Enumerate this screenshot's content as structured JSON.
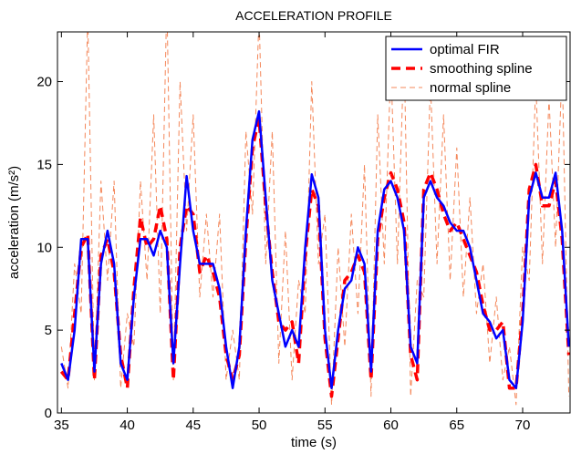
{
  "chart_data": {
    "type": "line",
    "title": "ACCELERATION PROFILE",
    "x_label": "time (s)",
    "y_label": "acceleration (m/s²)",
    "x": [
      35,
      35.5,
      36,
      36.5,
      37,
      37.5,
      38,
      38.5,
      39,
      39.5,
      40,
      40.5,
      41,
      41.5,
      42,
      42.5,
      43,
      43.5,
      44,
      44.5,
      45,
      45.5,
      46,
      46.5,
      47,
      47.5,
      48,
      48.5,
      49,
      49.5,
      50,
      50.5,
      51,
      51.5,
      52,
      52.5,
      53,
      53.5,
      54,
      54.5,
      55,
      55.5,
      56,
      56.5,
      57,
      57.5,
      58,
      58.5,
      59,
      59.5,
      60,
      60.5,
      61,
      61.5,
      62,
      62.5,
      63,
      63.5,
      64,
      64.5,
      65,
      65.5,
      66,
      66.5,
      67,
      67.5,
      68,
      68.5,
      69,
      69.5,
      70,
      70.5,
      71,
      71.5,
      72,
      72.5,
      73,
      73.5
    ],
    "series": [
      {
        "name": "optimal FIR",
        "color": "#0000ff",
        "dash": "solid",
        "width": 2.5,
        "values": [
          3,
          2,
          5,
          10.5,
          10.5,
          2.5,
          9,
          11,
          9,
          3,
          2,
          7,
          10.5,
          10.5,
          9.5,
          11,
          10,
          3,
          9,
          14.3,
          11,
          9,
          9,
          9,
          7.5,
          4,
          1.5,
          4,
          11,
          16.5,
          18.2,
          13,
          8,
          6,
          4,
          5,
          4,
          10,
          14.4,
          13,
          5,
          1.5,
          5,
          7.5,
          8,
          10,
          9,
          2.5,
          11,
          13.5,
          14,
          13,
          11,
          4,
          3,
          13,
          14,
          13,
          12.5,
          11.5,
          11,
          11,
          10,
          8,
          6,
          5.5,
          4.5,
          5,
          2,
          1.5,
          5.5,
          13,
          14.5,
          13,
          13,
          14.5,
          11,
          4
        ]
      },
      {
        "name": "smoothing spline",
        "color": "#ff0000",
        "dash": "dashed",
        "width": 3.5,
        "values": [
          2.5,
          2,
          6,
          10,
          10.8,
          2,
          9.5,
          10.5,
          8.5,
          3.5,
          1.5,
          7.5,
          11.8,
          10,
          10.5,
          12.5,
          10.5,
          2,
          10,
          12.5,
          12,
          8.5,
          9.5,
          8.5,
          7,
          3.5,
          2,
          3.5,
          10.5,
          16,
          17.8,
          12.5,
          8.5,
          5.5,
          5,
          5.5,
          3,
          9.5,
          13.5,
          12.5,
          4.5,
          1,
          4.5,
          8,
          8.5,
          9.5,
          8.5,
          2,
          10.5,
          13,
          14.5,
          13.5,
          11.5,
          3.5,
          2,
          13.5,
          14.5,
          13.5,
          12,
          11,
          11.5,
          10.5,
          9.5,
          8.5,
          6.5,
          5,
          5,
          5.5,
          1.5,
          1.5,
          6,
          13.5,
          15,
          12.5,
          12.5,
          14,
          10.5,
          3.5
        ]
      },
      {
        "name": "normal spline",
        "color": "#f4875a",
        "dash": "thin-dashed",
        "width": 1,
        "values": [
          4,
          1.5,
          9,
          6,
          24,
          2,
          14,
          8,
          14,
          1.5,
          6,
          4,
          14,
          8,
          18,
          6,
          25,
          2,
          20,
          11,
          18,
          7,
          12,
          7,
          12,
          2,
          5,
          2,
          17,
          12,
          24,
          9,
          17,
          3,
          11,
          2,
          8,
          6,
          20,
          9,
          12,
          0.5,
          10,
          4,
          12,
          6,
          15,
          1,
          18,
          9,
          21,
          9,
          22,
          1,
          8,
          7,
          20,
          9,
          18,
          8,
          16,
          7,
          13,
          6,
          9,
          3,
          7,
          2,
          4,
          0.5,
          10,
          8,
          20,
          9,
          19,
          10,
          21,
          1
        ]
      }
    ],
    "xlim": [
      34.7,
      73.6
    ],
    "ylim": [
      0,
      23
    ],
    "xticks": [
      35,
      40,
      45,
      50,
      55,
      60,
      65,
      70
    ],
    "yticks": [
      0,
      5,
      10,
      15,
      20
    ],
    "grid": false,
    "legend": "top-right"
  }
}
